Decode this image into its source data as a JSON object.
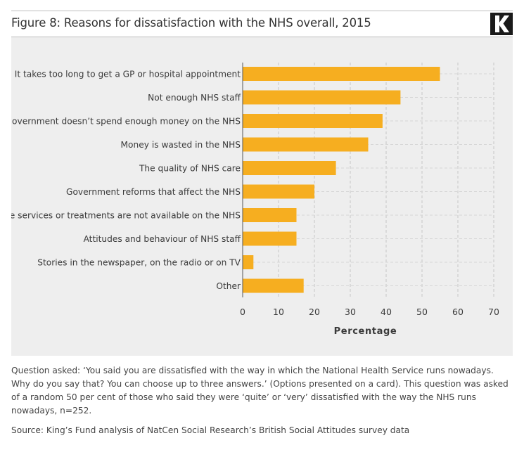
{
  "title": "Figure 8: Reasons for dissatisfaction with the NHS overall, 2015",
  "brand": {
    "logo_letter": "K",
    "logo_bg": "#1a1a1a",
    "logo_fg": "#ffffff"
  },
  "colors": {
    "bar": "#F6AE20",
    "panel": "#eeeeee",
    "grid": "#c6c6c6",
    "axis": "#555555"
  },
  "chart_data": {
    "type": "bar",
    "orientation": "horizontal",
    "categories": [
      "It takes too long to get a GP or hospital appointment",
      "Not enough NHS staff",
      "The government doesn’t spend enough money on the NHS",
      "Money is wasted in the NHS",
      "The quality of NHS care",
      "Government reforms that affect the NHS",
      "Some services or treatments are not available on the NHS",
      "Attitudes and behaviour of NHS staff",
      "Stories in the newspaper, on the radio or on TV",
      "Other"
    ],
    "values": [
      55,
      44,
      39,
      35,
      26,
      20,
      15,
      15,
      3,
      17
    ],
    "xlabel": "Percentage",
    "ylabel": "",
    "xlim": [
      0,
      70
    ],
    "xticks": [
      0,
      10,
      20,
      30,
      40,
      50,
      60,
      70
    ],
    "grid": true
  },
  "notes": {
    "question": "Question asked: ‘You said you are dissatisfied with the way in which the National Health Service runs nowadays. Why do you say that? You can choose up to three answers.’ (Options presented on a card). This question was asked of a random 50 per cent of those who said they were ‘quite’ or ‘very’ dissatisfied with the way the NHS runs nowadays, n=252.",
    "source": "Source: King’s Fund analysis of NatCen Social Research’s British Social Attitudes survey data"
  }
}
